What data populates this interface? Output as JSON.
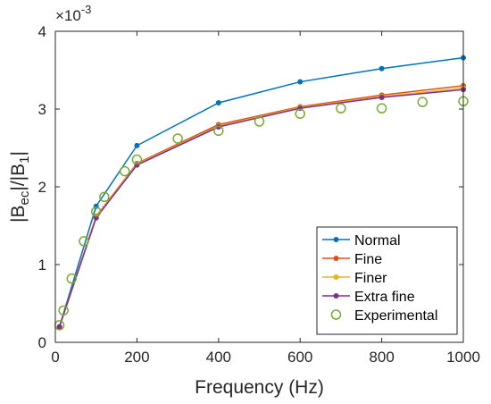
{
  "chart_data": {
    "type": "line",
    "xlabel": "Frequency (Hz)",
    "ylabel_main": "|B",
    "ylabel_sub1": "ec",
    "ylabel_mid": "|/|B",
    "ylabel_sub2": "1",
    "ylabel_end": "|",
    "exponent_base": "×10",
    "exponent_power": "-3",
    "xlim": [
      0,
      1000
    ],
    "ylim": [
      0,
      4
    ],
    "xticks": [
      0,
      200,
      400,
      600,
      800,
      1000
    ],
    "yticks": [
      0,
      1,
      2,
      3,
      4
    ],
    "xtick_labels": [
      "0",
      "200",
      "400",
      "600",
      "800",
      "1000"
    ],
    "ytick_labels": [
      "0",
      "1",
      "2",
      "3",
      "4"
    ],
    "grid": false,
    "legend_position": "bottom-right",
    "series": [
      {
        "name": "Normal",
        "color": "#0072BD",
        "marker": "dot",
        "x": [
          10,
          100,
          200,
          400,
          600,
          800,
          1000
        ],
        "y": [
          0.2,
          1.75,
          2.53,
          3.08,
          3.35,
          3.52,
          3.66
        ]
      },
      {
        "name": "Fine",
        "color": "#D95319",
        "marker": "dot",
        "x": [
          10,
          100,
          200,
          400,
          600,
          800,
          1000
        ],
        "y": [
          0.2,
          1.62,
          2.3,
          2.8,
          3.03,
          3.18,
          3.3
        ]
      },
      {
        "name": "Finer",
        "color": "#EDB120",
        "marker": "dot",
        "x": [
          10,
          100,
          200,
          400,
          600,
          800,
          1000
        ],
        "y": [
          0.2,
          1.61,
          2.29,
          2.78,
          3.02,
          3.16,
          3.27
        ]
      },
      {
        "name": "Extra fine",
        "color": "#7E2F8E",
        "marker": "dot",
        "x": [
          10,
          100,
          200,
          400,
          600,
          800,
          1000
        ],
        "y": [
          0.2,
          1.6,
          2.28,
          2.77,
          3.01,
          3.15,
          3.25
        ]
      },
      {
        "name": "Experimental",
        "color": "#77AC30",
        "marker": "circle",
        "x": [
          10,
          20,
          40,
          70,
          100,
          120,
          170,
          200,
          300,
          400,
          500,
          600,
          700,
          800,
          900,
          1000
        ],
        "y": [
          0.22,
          0.41,
          0.82,
          1.3,
          1.68,
          1.87,
          2.2,
          2.35,
          2.62,
          2.72,
          2.84,
          2.94,
          3.01,
          3.01,
          3.09,
          3.1
        ]
      }
    ]
  }
}
